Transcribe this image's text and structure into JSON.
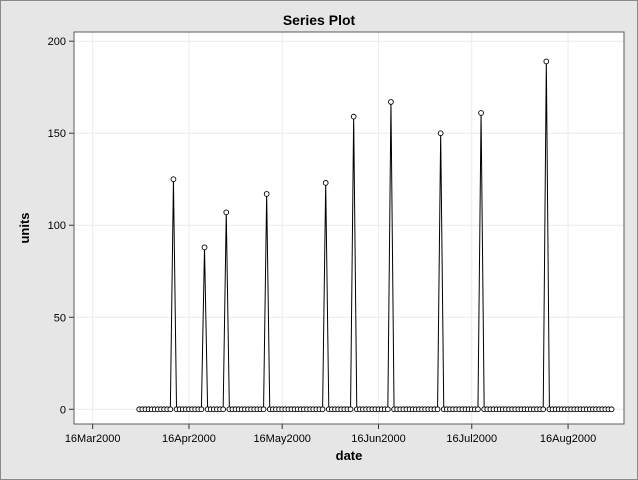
{
  "chart_data": {
    "type": "line",
    "title": "Series Plot",
    "xlabel": "date",
    "ylabel": "units",
    "xlim": [
      "2000-03-10",
      "2000-09-03"
    ],
    "ylim": [
      -8,
      205
    ],
    "xticks": [
      "16Mar2000",
      "16Apr2000",
      "16May2000",
      "16Jun2000",
      "16Jul2000",
      "16Aug2000"
    ],
    "yticks": [
      0,
      50,
      100,
      150,
      200
    ],
    "grid": true,
    "legend": "none",
    "marker": "open-circle",
    "line_color": "#000000",
    "series": [
      {
        "name": "",
        "points": [
          [
            "2000-03-31",
            0
          ],
          [
            "2000-04-01",
            0
          ],
          [
            "2000-04-02",
            0
          ],
          [
            "2000-04-03",
            0
          ],
          [
            "2000-04-04",
            0
          ],
          [
            "2000-04-05",
            0
          ],
          [
            "2000-04-06",
            0
          ],
          [
            "2000-04-07",
            0
          ],
          [
            "2000-04-08",
            0
          ],
          [
            "2000-04-09",
            0
          ],
          [
            "2000-04-10",
            0
          ],
          [
            "2000-04-11",
            125
          ],
          [
            "2000-04-12",
            0
          ],
          [
            "2000-04-13",
            0
          ],
          [
            "2000-04-14",
            0
          ],
          [
            "2000-04-15",
            0
          ],
          [
            "2000-04-16",
            0
          ],
          [
            "2000-04-17",
            0
          ],
          [
            "2000-04-18",
            0
          ],
          [
            "2000-04-19",
            0
          ],
          [
            "2000-04-20",
            0
          ],
          [
            "2000-04-21",
            88
          ],
          [
            "2000-04-22",
            0
          ],
          [
            "2000-04-23",
            0
          ],
          [
            "2000-04-24",
            0
          ],
          [
            "2000-04-25",
            0
          ],
          [
            "2000-04-26",
            0
          ],
          [
            "2000-04-27",
            0
          ],
          [
            "2000-04-28",
            107
          ],
          [
            "2000-04-29",
            0
          ],
          [
            "2000-04-30",
            0
          ],
          [
            "2000-05-01",
            0
          ],
          [
            "2000-05-02",
            0
          ],
          [
            "2000-05-03",
            0
          ],
          [
            "2000-05-04",
            0
          ],
          [
            "2000-05-05",
            0
          ],
          [
            "2000-05-06",
            0
          ],
          [
            "2000-05-07",
            0
          ],
          [
            "2000-05-08",
            0
          ],
          [
            "2000-05-09",
            0
          ],
          [
            "2000-05-10",
            0
          ],
          [
            "2000-05-11",
            117
          ],
          [
            "2000-05-12",
            0
          ],
          [
            "2000-05-13",
            0
          ],
          [
            "2000-05-14",
            0
          ],
          [
            "2000-05-15",
            0
          ],
          [
            "2000-05-16",
            0
          ],
          [
            "2000-05-17",
            0
          ],
          [
            "2000-05-18",
            0
          ],
          [
            "2000-05-19",
            0
          ],
          [
            "2000-05-20",
            0
          ],
          [
            "2000-05-21",
            0
          ],
          [
            "2000-05-22",
            0
          ],
          [
            "2000-05-23",
            0
          ],
          [
            "2000-05-24",
            0
          ],
          [
            "2000-05-25",
            0
          ],
          [
            "2000-05-26",
            0
          ],
          [
            "2000-05-27",
            0
          ],
          [
            "2000-05-28",
            0
          ],
          [
            "2000-05-29",
            0
          ],
          [
            "2000-05-30",
            123
          ],
          [
            "2000-05-31",
            0
          ],
          [
            "2000-06-01",
            0
          ],
          [
            "2000-06-02",
            0
          ],
          [
            "2000-06-03",
            0
          ],
          [
            "2000-06-04",
            0
          ],
          [
            "2000-06-05",
            0
          ],
          [
            "2000-06-06",
            0
          ],
          [
            "2000-06-07",
            0
          ],
          [
            "2000-06-08",
            159
          ],
          [
            "2000-06-09",
            0
          ],
          [
            "2000-06-10",
            0
          ],
          [
            "2000-06-11",
            0
          ],
          [
            "2000-06-12",
            0
          ],
          [
            "2000-06-13",
            0
          ],
          [
            "2000-06-14",
            0
          ],
          [
            "2000-06-15",
            0
          ],
          [
            "2000-06-16",
            0
          ],
          [
            "2000-06-17",
            0
          ],
          [
            "2000-06-18",
            0
          ],
          [
            "2000-06-19",
            0
          ],
          [
            "2000-06-20",
            167
          ],
          [
            "2000-06-21",
            0
          ],
          [
            "2000-06-22",
            0
          ],
          [
            "2000-06-23",
            0
          ],
          [
            "2000-06-24",
            0
          ],
          [
            "2000-06-25",
            0
          ],
          [
            "2000-06-26",
            0
          ],
          [
            "2000-06-27",
            0
          ],
          [
            "2000-06-28",
            0
          ],
          [
            "2000-06-29",
            0
          ],
          [
            "2000-06-30",
            0
          ],
          [
            "2000-07-01",
            0
          ],
          [
            "2000-07-02",
            0
          ],
          [
            "2000-07-03",
            0
          ],
          [
            "2000-07-04",
            0
          ],
          [
            "2000-07-05",
            0
          ],
          [
            "2000-07-06",
            150
          ],
          [
            "2000-07-07",
            0
          ],
          [
            "2000-07-08",
            0
          ],
          [
            "2000-07-09",
            0
          ],
          [
            "2000-07-10",
            0
          ],
          [
            "2000-07-11",
            0
          ],
          [
            "2000-07-12",
            0
          ],
          [
            "2000-07-13",
            0
          ],
          [
            "2000-07-14",
            0
          ],
          [
            "2000-07-15",
            0
          ],
          [
            "2000-07-16",
            0
          ],
          [
            "2000-07-17",
            0
          ],
          [
            "2000-07-18",
            0
          ],
          [
            "2000-07-19",
            161
          ],
          [
            "2000-07-20",
            0
          ],
          [
            "2000-07-21",
            0
          ],
          [
            "2000-07-22",
            0
          ],
          [
            "2000-07-23",
            0
          ],
          [
            "2000-07-24",
            0
          ],
          [
            "2000-07-25",
            0
          ],
          [
            "2000-07-26",
            0
          ],
          [
            "2000-07-27",
            0
          ],
          [
            "2000-07-28",
            0
          ],
          [
            "2000-07-29",
            0
          ],
          [
            "2000-07-30",
            0
          ],
          [
            "2000-07-31",
            0
          ],
          [
            "2000-08-01",
            0
          ],
          [
            "2000-08-02",
            0
          ],
          [
            "2000-08-03",
            0
          ],
          [
            "2000-08-04",
            0
          ],
          [
            "2000-08-05",
            0
          ],
          [
            "2000-08-06",
            0
          ],
          [
            "2000-08-07",
            0
          ],
          [
            "2000-08-08",
            0
          ],
          [
            "2000-08-09",
            189
          ],
          [
            "2000-08-10",
            0
          ],
          [
            "2000-08-11",
            0
          ],
          [
            "2000-08-12",
            0
          ],
          [
            "2000-08-13",
            0
          ],
          [
            "2000-08-14",
            0
          ],
          [
            "2000-08-15",
            0
          ],
          [
            "2000-08-16",
            0
          ],
          [
            "2000-08-17",
            0
          ],
          [
            "2000-08-18",
            0
          ],
          [
            "2000-08-19",
            0
          ],
          [
            "2000-08-20",
            0
          ],
          [
            "2000-08-21",
            0
          ],
          [
            "2000-08-22",
            0
          ],
          [
            "2000-08-23",
            0
          ],
          [
            "2000-08-24",
            0
          ],
          [
            "2000-08-25",
            0
          ],
          [
            "2000-08-26",
            0
          ],
          [
            "2000-08-27",
            0
          ],
          [
            "2000-08-28",
            0
          ],
          [
            "2000-08-29",
            0
          ],
          [
            "2000-08-30",
            0
          ]
        ]
      }
    ]
  }
}
